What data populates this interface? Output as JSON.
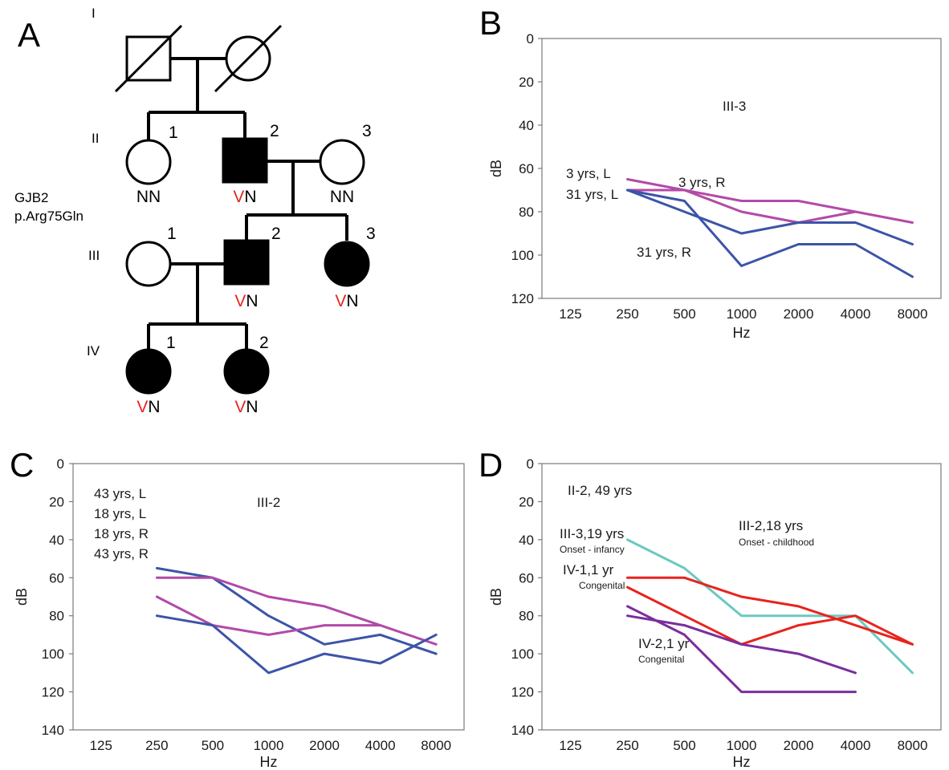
{
  "panel_letters": {
    "a": "A",
    "b": "B",
    "c": "C",
    "d": "D"
  },
  "pedigree": {
    "generations": [
      "I",
      "II",
      "III",
      "IV"
    ],
    "gene": "GJB2",
    "variant": "p.Arg75Gln",
    "members": [
      {
        "id": "I-1",
        "sex": "male",
        "affected": false,
        "deceased": true,
        "number": "",
        "genotype": [
          "",
          ""
        ]
      },
      {
        "id": "I-2",
        "sex": "female",
        "affected": false,
        "deceased": true,
        "number": "",
        "genotype": [
          "",
          ""
        ]
      },
      {
        "id": "II-1",
        "sex": "female",
        "affected": false,
        "deceased": false,
        "number": "1",
        "genotype": [
          "",
          "NN"
        ]
      },
      {
        "id": "II-2",
        "sex": "male",
        "affected": true,
        "deceased": false,
        "number": "2",
        "genotype": [
          "V",
          "N"
        ]
      },
      {
        "id": "II-3",
        "sex": "female",
        "affected": false,
        "deceased": false,
        "number": "3",
        "genotype": [
          "",
          "NN"
        ]
      },
      {
        "id": "III-1",
        "sex": "female",
        "affected": false,
        "deceased": false,
        "number": "1",
        "genotype": [
          "",
          ""
        ]
      },
      {
        "id": "III-2",
        "sex": "male",
        "affected": true,
        "deceased": false,
        "number": "2",
        "genotype": [
          "V",
          "N"
        ]
      },
      {
        "id": "III-3",
        "sex": "female",
        "affected": true,
        "deceased": false,
        "number": "3",
        "genotype": [
          "V",
          "N"
        ]
      },
      {
        "id": "IV-1",
        "sex": "female",
        "affected": true,
        "deceased": false,
        "number": "1",
        "genotype": [
          "V",
          "N"
        ]
      },
      {
        "id": "IV-2",
        "sex": "female",
        "affected": true,
        "deceased": false,
        "number": "2",
        "genotype": [
          "V",
          "N"
        ]
      }
    ],
    "colors": {
      "variant_allele": "#e8231e",
      "symbol": "#000000"
    }
  },
  "chart_data": [
    {
      "panel": "B",
      "type": "line",
      "title": "III-3",
      "xlabel": "Hz",
      "ylabel": "dB",
      "categories": [
        "125",
        "250",
        "500",
        "1000",
        "2000",
        "4000",
        "8000"
      ],
      "y_ticks": [
        0,
        20,
        40,
        60,
        80,
        100,
        120
      ],
      "ylim": [
        0,
        120
      ],
      "y_inverted": true,
      "grid": false,
      "series": [
        {
          "name": "3 yrs, L",
          "color": "#b24aa8",
          "x": [
            "250",
            "500",
            "1000",
            "2000",
            "4000",
            "8000"
          ],
          "values": [
            65,
            70,
            75,
            75,
            80,
            85
          ]
        },
        {
          "name": "3 yrs, R",
          "color": "#b24aa8",
          "x": [
            "250",
            "500",
            "1000",
            "2000",
            "4000"
          ],
          "values": [
            70,
            70,
            80,
            85,
            80
          ]
        },
        {
          "name": "31 yrs, L",
          "color": "#3c54a8",
          "x": [
            "250",
            "500",
            "1000",
            "2000",
            "4000",
            "8000"
          ],
          "values": [
            70,
            75,
            105,
            95,
            95,
            110
          ]
        },
        {
          "name": "31 yrs, R",
          "color": "#3c54a8",
          "x": [
            "250",
            "500",
            "1000",
            "2000",
            "4000",
            "8000"
          ],
          "values": [
            70,
            80,
            90,
            85,
            85,
            95
          ]
        }
      ],
      "annotations": [
        "3 yrs, L",
        "31 yrs, L",
        "3 yrs, R",
        "31 yrs, R"
      ]
    },
    {
      "panel": "C",
      "type": "line",
      "title": "III-2",
      "xlabel": "Hz",
      "ylabel": "dB",
      "categories": [
        "125",
        "250",
        "500",
        "1000",
        "2000",
        "4000",
        "8000"
      ],
      "y_ticks": [
        0,
        20,
        40,
        60,
        80,
        100,
        120,
        140
      ],
      "ylim": [
        0,
        140
      ],
      "y_inverted": true,
      "grid": false,
      "series": [
        {
          "name": "43 yrs, L",
          "color": "#3c54a8",
          "x": [
            "250",
            "500",
            "1000",
            "2000",
            "4000",
            "8000"
          ],
          "values": [
            55,
            60,
            80,
            95,
            90,
            100
          ]
        },
        {
          "name": "18 yrs, L",
          "color": "#b24aa8",
          "x": [
            "250",
            "500",
            "1000",
            "2000",
            "4000",
            "8000"
          ],
          "values": [
            60,
            60,
            70,
            75,
            85,
            95
          ]
        },
        {
          "name": "18 yrs, R",
          "color": "#b24aa8",
          "x": [
            "250",
            "500",
            "1000",
            "2000",
            "4000"
          ],
          "values": [
            70,
            85,
            90,
            85,
            85
          ]
        },
        {
          "name": "43 yrs, R",
          "color": "#3c54a8",
          "x": [
            "250",
            "500",
            "1000",
            "2000",
            "4000",
            "8000"
          ],
          "values": [
            80,
            85,
            110,
            100,
            105,
            90
          ]
        }
      ],
      "annotations": [
        "43 yrs, L",
        "18 yrs, L",
        "18 yrs, R",
        "43 yrs, R"
      ]
    },
    {
      "panel": "D",
      "type": "line",
      "title": "",
      "xlabel": "Hz",
      "ylabel": "dB",
      "categories": [
        "125",
        "250",
        "500",
        "1000",
        "2000",
        "4000",
        "8000"
      ],
      "y_ticks": [
        0,
        20,
        40,
        60,
        80,
        100,
        120,
        140
      ],
      "ylim": [
        0,
        140
      ],
      "y_inverted": true,
      "grid": false,
      "series": [
        {
          "name": "II-2, 49 yrs",
          "color": "#6cc9c0",
          "x": [
            "250",
            "500",
            "1000",
            "2000",
            "4000",
            "8000"
          ],
          "values": [
            40,
            55,
            80,
            80,
            80,
            110
          ]
        },
        {
          "name": "III-2,18 yrs",
          "note": "Onset - childhood",
          "color": "#e8231e",
          "x": [
            "250",
            "500",
            "1000",
            "2000",
            "4000",
            "8000"
          ],
          "values": [
            60,
            60,
            70,
            75,
            85,
            95
          ]
        },
        {
          "name": "III-3,19 yrs",
          "note": "Onset - infancy",
          "color": "#e8231e",
          "x": [
            "250",
            "500",
            "1000",
            "2000",
            "4000",
            "8000"
          ],
          "values": [
            65,
            80,
            95,
            85,
            80,
            95
          ]
        },
        {
          "name": "IV-1,1 yr",
          "note": "Congenital",
          "color": "#7a2e9c",
          "x": [
            "250",
            "500",
            "1000",
            "2000",
            "4000"
          ],
          "values": [
            80,
            85,
            95,
            100,
            110
          ]
        },
        {
          "name": "IV-2,1 yr",
          "note": "Congenital",
          "color": "#7a2e9c",
          "x": [
            "250",
            "500",
            "1000",
            "2000",
            "4000"
          ],
          "values": [
            75,
            90,
            120,
            120,
            120
          ]
        }
      ],
      "annotations": [
        "II-2, 49 yrs",
        "III-2,18 yrs",
        "Onset - childhood",
        "III-3,19 yrs",
        "Onset - infancy",
        "IV-1,1 yr",
        "Congenital",
        "IV-2,1 yr",
        "Congenital"
      ]
    }
  ]
}
